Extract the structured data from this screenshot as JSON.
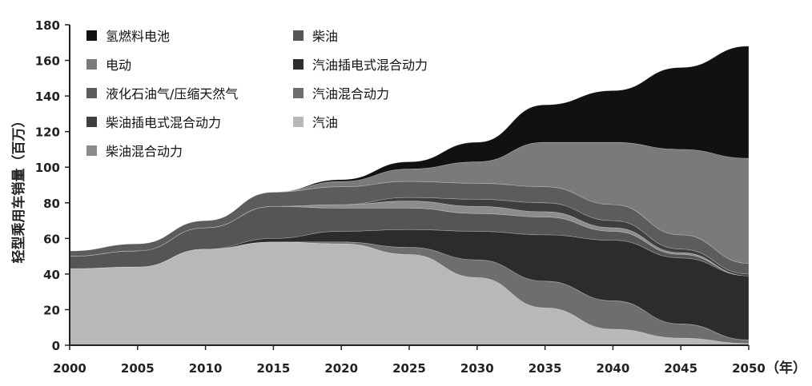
{
  "chart_data": {
    "type": "area",
    "stacked": true,
    "title": "",
    "xlabel": "（年）",
    "ylabel": "轻型乘用车销量（百万）",
    "x": [
      2000,
      2005,
      2010,
      2015,
      2020,
      2025,
      2030,
      2035,
      2040,
      2045,
      2050
    ],
    "xlim": [
      2000,
      2050
    ],
    "ylim": [
      0,
      180
    ],
    "xticks": [
      "2000",
      "2005",
      "2010",
      "2015",
      "2020",
      "2025",
      "2030",
      "2035",
      "2040",
      "2045",
      "2050"
    ],
    "yticks": [
      "0",
      "20",
      "40",
      "60",
      "80",
      "100",
      "120",
      "140",
      "160",
      "180"
    ],
    "grid": false,
    "legend_position": "top-left",
    "legend_order": [
      "氢燃料电池",
      "电动",
      "液化石油气/压缩天然气",
      "柴油插电式混合动力",
      "柴油混合动力",
      "柴油",
      "汽油插电式混合动力",
      "汽油混合动力",
      "汽油"
    ],
    "series": [
      {
        "name": "汽油",
        "color": "#b8b8b8",
        "values": [
          43,
          44,
          54,
          58,
          57,
          51,
          38,
          21,
          9,
          4,
          1
        ]
      },
      {
        "name": "汽油混合动力",
        "color": "#6e6e6e",
        "values": [
          0,
          0,
          0,
          0,
          1,
          4,
          10,
          15,
          16,
          8,
          2
        ]
      },
      {
        "name": "汽油插电式混合动力",
        "color": "#2c2c2c",
        "values": [
          0,
          0,
          0,
          2,
          6,
          10,
          16,
          26,
          34,
          37,
          36
        ]
      },
      {
        "name": "柴油",
        "color": "#555555",
        "values": [
          7,
          9,
          12,
          18,
          13,
          12,
          10,
          10,
          5,
          2,
          0
        ]
      },
      {
        "name": "柴油混合动力",
        "color": "#8c8c8c",
        "values": [
          0,
          0,
          0,
          0,
          2,
          4,
          4,
          3,
          2,
          1,
          0
        ]
      },
      {
        "name": "柴油插电式混合动力",
        "color": "#3e3e3e",
        "values": [
          0,
          0,
          0,
          0,
          0,
          2,
          4,
          5,
          4,
          2,
          1
        ]
      },
      {
        "name": "液化石油气/压缩天然气",
        "color": "#5c5c5c",
        "values": [
          3,
          4,
          4,
          8,
          10,
          9,
          9,
          9,
          9,
          8,
          6
        ]
      },
      {
        "name": "电动",
        "color": "#7a7a7a",
        "values": [
          0,
          0,
          0,
          0,
          3,
          7,
          12,
          25,
          35,
          48,
          59
        ]
      },
      {
        "name": "氢燃料电池",
        "color": "#111111",
        "values": [
          0,
          0,
          0,
          0,
          1,
          4,
          11,
          21,
          29,
          46,
          63
        ]
      }
    ]
  }
}
